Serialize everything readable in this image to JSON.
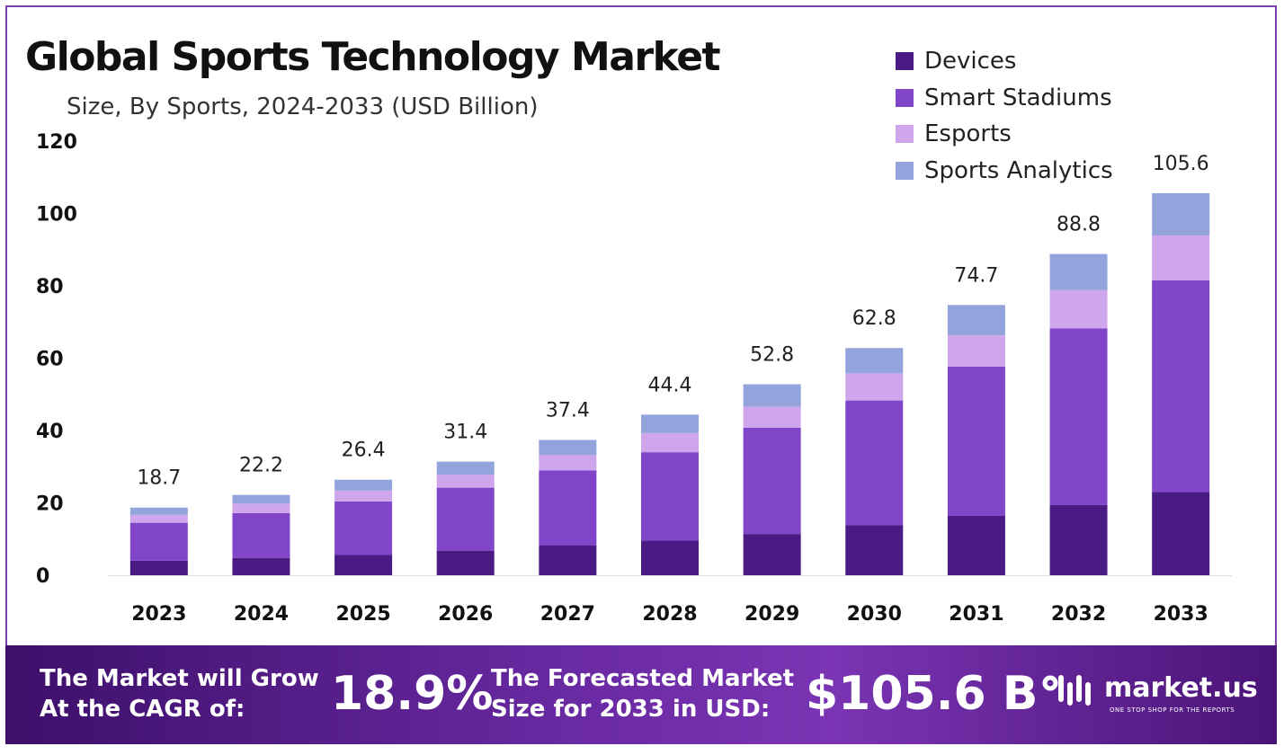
{
  "chart_data": {
    "type": "bar",
    "stacked": true,
    "title": "Global Sports Technology Market",
    "subtitle": "Size, By Sports, 2024-2033 (USD Billion)",
    "categories": [
      "2023",
      "2024",
      "2025",
      "2026",
      "2027",
      "2028",
      "2029",
      "2030",
      "2031",
      "2032",
      "2033"
    ],
    "series": [
      {
        "name": "Devices",
        "color": "#4a1a85",
        "values": [
          4.0,
          4.8,
          5.6,
          6.8,
          8.2,
          9.6,
          11.4,
          13.8,
          16.4,
          19.4,
          23.0
        ]
      },
      {
        "name": "Smart Stadiums",
        "color": "#8045c9",
        "values": [
          10.5,
          12.4,
          14.8,
          17.4,
          20.8,
          24.4,
          29.4,
          34.5,
          41.3,
          48.8,
          58.5
        ]
      },
      {
        "name": "Esports",
        "color": "#cfa6ec",
        "values": [
          2.2,
          2.6,
          3.0,
          3.6,
          4.2,
          5.3,
          5.8,
          7.5,
          8.6,
          10.6,
          12.4
        ]
      },
      {
        "name": "Sports Analytics",
        "color": "#93a3dc",
        "values": [
          2.0,
          2.4,
          3.0,
          3.6,
          4.2,
          5.1,
          6.2,
          7.0,
          8.4,
          10.0,
          11.7
        ]
      }
    ],
    "totals": [
      "18.7",
      "22.2",
      "26.4",
      "31.4",
      "37.4",
      "44.4",
      "52.8",
      "62.8",
      "74.7",
      "88.8",
      "105.6"
    ],
    "ylim": [
      0,
      120
    ],
    "yticks": [
      "0",
      "20",
      "40",
      "60",
      "80",
      "100",
      "120"
    ],
    "grid": false,
    "legend_position": "top-right"
  },
  "banner": {
    "cagr_label_line1": "The Market will Grow",
    "cagr_label_line2": "At the CAGR of:",
    "cagr_value": "18.9%",
    "forecast_label_line1": "The Forecasted Market",
    "forecast_label_line2": "Size for 2033 in USD:",
    "forecast_value": "$105.6 B",
    "brand_name": "market.us",
    "brand_tagline": "ONE STOP SHOP FOR THE REPORTS"
  }
}
